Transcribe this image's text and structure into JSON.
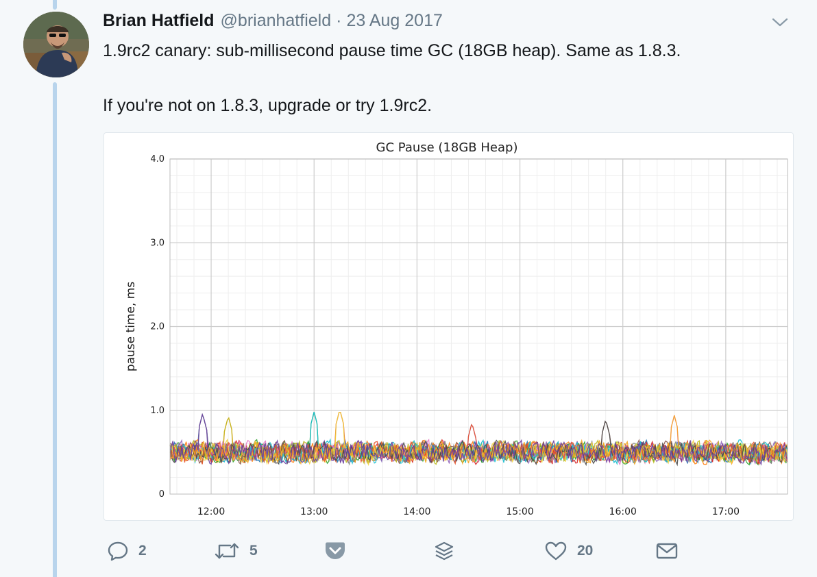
{
  "tweet": {
    "author": {
      "name": "Brian Hatfield",
      "handle": "@brianhatfield"
    },
    "separator": "·",
    "date": "23 Aug 2017",
    "text_line1": "1.9rc2 canary: sub-millisecond pause time GC (18GB heap). Same as 1.8.3.",
    "text_line2": "If you're not on 1.8.3, upgrade or try 1.9rc2.",
    "actions": {
      "reply_count": "2",
      "retweet_count": "5",
      "like_count": "20"
    }
  },
  "icons": {
    "reply": "reply-bubble-icon",
    "retweet": "retweet-icon",
    "pocket": "pocket-save-icon",
    "buffer": "buffer-stack-icon",
    "like": "heart-icon",
    "dm": "envelope-icon",
    "caret": "chevron-down-icon"
  },
  "colors": {
    "thread_line": "#b8d4ec",
    "muted_text": "#657786",
    "text": "#14171a",
    "background": "#f5f8fa"
  },
  "chart_data": {
    "type": "line",
    "title": "GC Pause (18GB Heap)",
    "ylabel": "pause time, ms",
    "xlabel": "",
    "ylim": [
      0,
      4.0
    ],
    "yticks": [
      "0",
      "1.0",
      "2.0",
      "3.0",
      "4.0"
    ],
    "xticks": [
      "12:00",
      "13:00",
      "14:00",
      "15:00",
      "16:00",
      "17:00"
    ],
    "xlim": [
      "11:36",
      "17:36"
    ],
    "grid": true,
    "legend": "none",
    "series_colors": [
      "#1f77b4",
      "#ff7f0e",
      "#2ca02c",
      "#d62728",
      "#9467bd",
      "#8c564b",
      "#e377c2",
      "#7f7f7f",
      "#bcbd22",
      "#17becf",
      "#f2d43d",
      "#e8542f",
      "#4a4a4a",
      "#f5a623",
      "#6b3fa0"
    ],
    "series_range_ms": [
      0.35,
      1.0
    ],
    "series_baseline_ms": 0.5,
    "peaks_ms": [
      {
        "x": "11:55",
        "y": 0.96
      },
      {
        "x": "12:10",
        "y": 0.93
      },
      {
        "x": "13:00",
        "y": 0.98
      },
      {
        "x": "13:15",
        "y": 1.01
      },
      {
        "x": "14:32",
        "y": 0.85
      },
      {
        "x": "15:50",
        "y": 0.89
      },
      {
        "x": "16:30",
        "y": 0.94
      }
    ]
  }
}
